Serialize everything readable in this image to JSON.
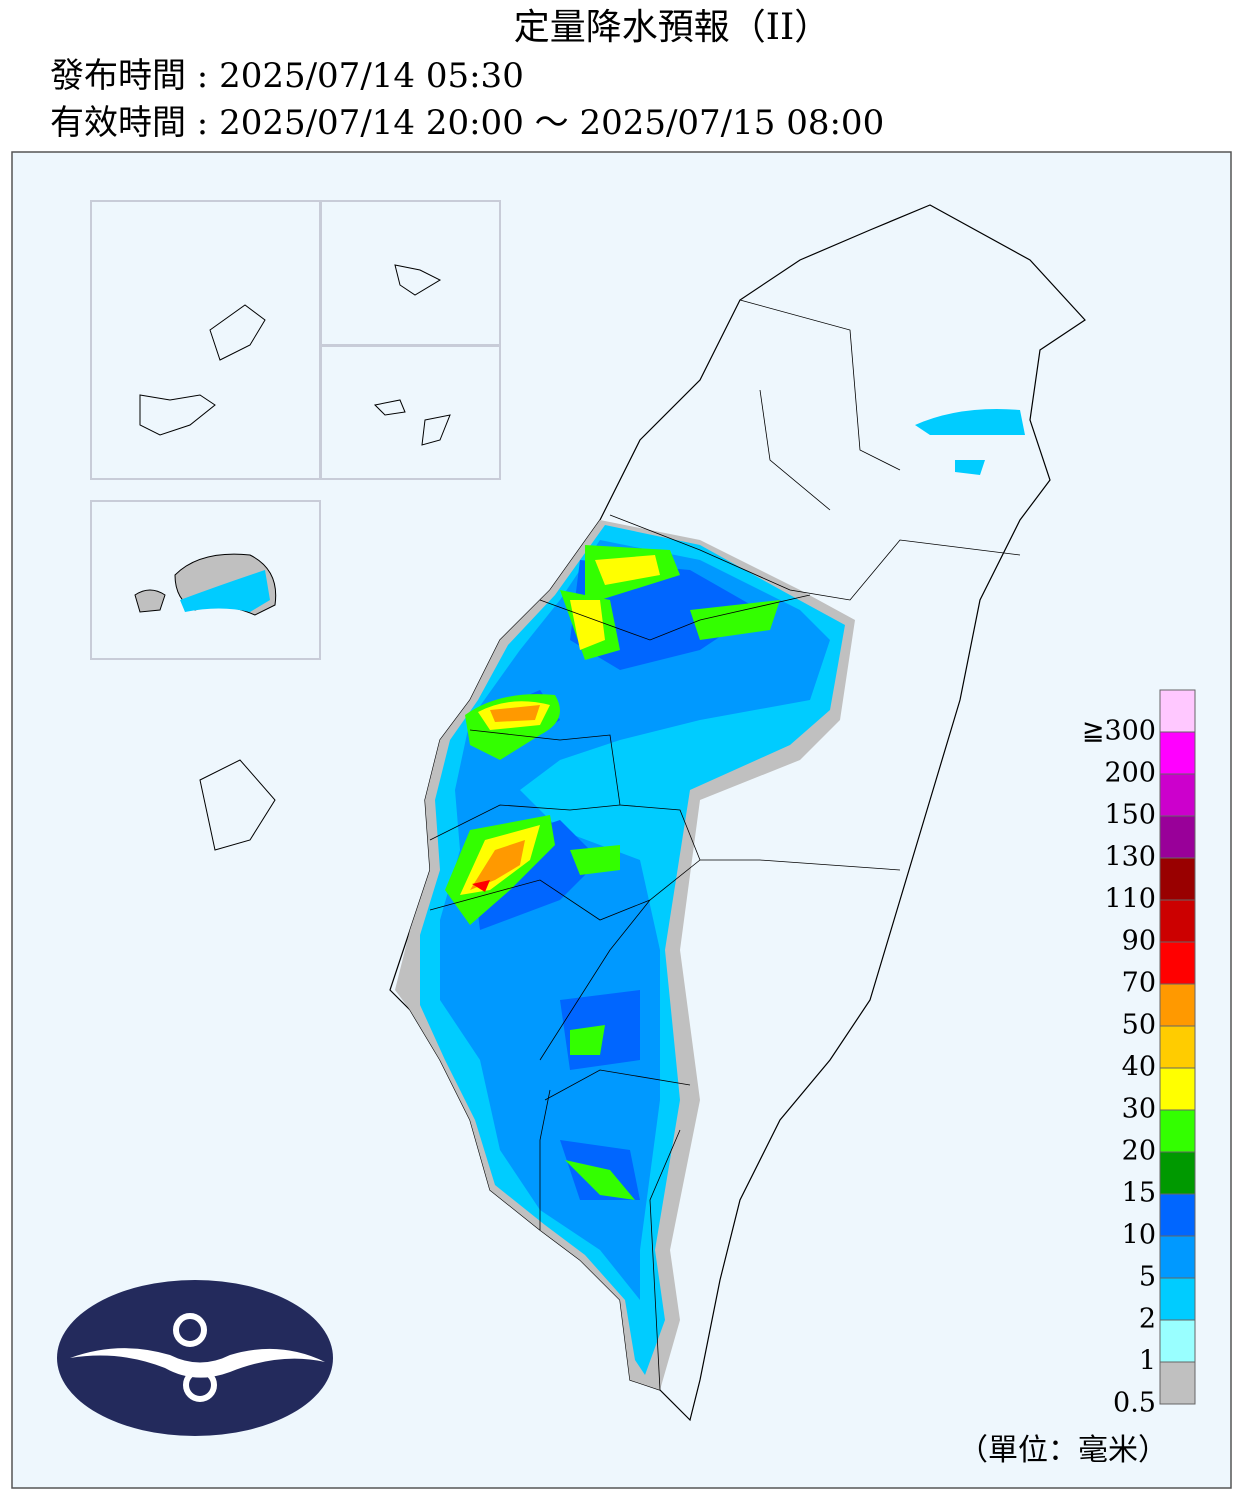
{
  "header": {
    "title": "定量降水預報（II）",
    "issued": "發布時間 : 2025/07/14 05:30",
    "valid": "有效時間 : 2025/07/14 20:00 ～ 2025/07/15 08:00"
  },
  "legend": {
    "unit": "（單位：毫米）",
    "items": [
      {
        "label": "≧300",
        "color": "#ffc8ff"
      },
      {
        "label": "200",
        "color": "#ff00ff"
      },
      {
        "label": "150",
        "color": "#cc00cc"
      },
      {
        "label": "130",
        "color": "#990099"
      },
      {
        "label": "110",
        "color": "#990000"
      },
      {
        "label": "90",
        "color": "#cc0000"
      },
      {
        "label": "70",
        "color": "#ff0000"
      },
      {
        "label": "50",
        "color": "#ff9900"
      },
      {
        "label": "40",
        "color": "#ffcc00"
      },
      {
        "label": "30",
        "color": "#ffff00"
      },
      {
        "label": "20",
        "color": "#33ff00"
      },
      {
        "label": "15",
        "color": "#009900"
      },
      {
        "label": "10",
        "color": "#0066ff"
      },
      {
        "label": "5",
        "color": "#0099ff"
      },
      {
        "label": "2",
        "color": "#00ccff"
      },
      {
        "label": "1",
        "color": "#99ffff"
      },
      {
        "label": "0.5",
        "color": "#c0c0c0"
      }
    ]
  }
}
